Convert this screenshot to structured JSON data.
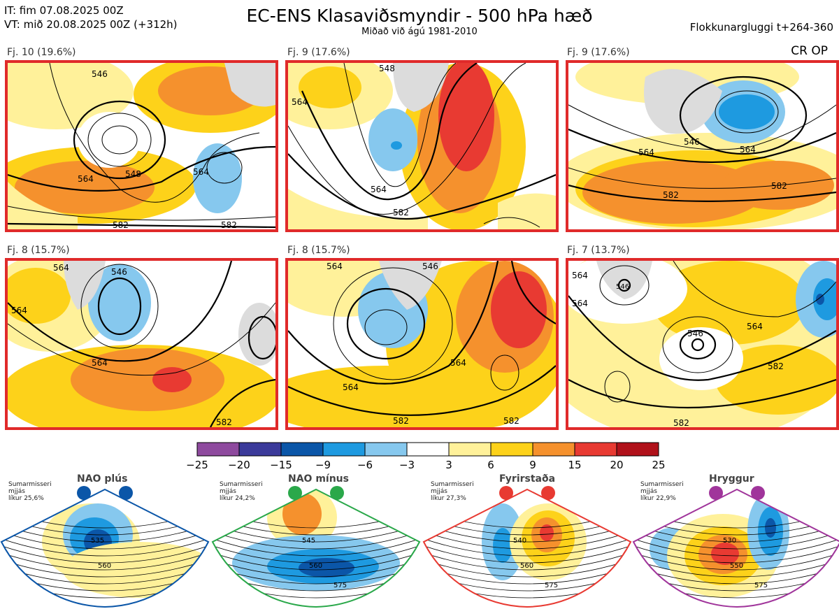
{
  "header": {
    "it_line": "IT: fim 07.08.2025 00Z",
    "vt_line": "VT: mið 20.08.2025 00Z  (+312h)",
    "title": "EC-ENS Klasaviðsmyndir - 500 hPa hæð",
    "subtitle": "Miðað við ágú 1981-2010",
    "window": "Flokkunargluggi t+264-360",
    "crop": "CR OP"
  },
  "panels": [
    {
      "label": "Fj. 10 (19.6%)",
      "contours": [
        "546",
        "548",
        "564",
        "564",
        "582",
        "582"
      ]
    },
    {
      "label": "Fj. 9 (17.6%)",
      "contours": [
        "548",
        "564",
        "564",
        "582"
      ]
    },
    {
      "label": "Fj. 9 (17.6%)",
      "contours": [
        "546",
        "564",
        "564",
        "582",
        "582"
      ]
    },
    {
      "label": "Fj. 8 (15.7%)",
      "contours": [
        "564",
        "546",
        "564",
        "564",
        "582"
      ]
    },
    {
      "label": "Fj. 8 (15.7%)",
      "contours": [
        "564",
        "546",
        "564",
        "582",
        "582",
        "564"
      ]
    },
    {
      "label": "Fj. 7 (13.7%)",
      "contours": [
        "564",
        "546",
        "564",
        "564",
        "582",
        "582",
        "546"
      ]
    }
  ],
  "chart_data": {
    "type": "heatmap",
    "title": "EC-ENS Klasaviðsmyndir - 500 hPa hæð",
    "colorbar": {
      "ticks": [
        "−25",
        "−20",
        "−15",
        "−9",
        "−6",
        "−3",
        "3",
        "6",
        "9",
        "15",
        "20",
        "25"
      ],
      "colors": [
        "#8e4a9e",
        "#3b3a9a",
        "#0b56a8",
        "#1e9ae0",
        "#86c8ee",
        "#ffffff",
        "#fff19a",
        "#fdd21a",
        "#f5912d",
        "#e83a32",
        "#b0111a"
      ]
    },
    "clusters": [
      {
        "cluster": 10,
        "percent": 19.6
      },
      {
        "cluster": 9,
        "percent": 17.6
      },
      {
        "cluster": 9,
        "percent": 17.6
      },
      {
        "cluster": 8,
        "percent": 15.7
      },
      {
        "cluster": 8,
        "percent": 15.7
      },
      {
        "cluster": 7,
        "percent": 13.7
      }
    ]
  },
  "regimes": [
    {
      "title": "NAO plús",
      "info": [
        "Sumarmisseri",
        "mjjás",
        "líkur 25,6%"
      ],
      "contours": [
        "535",
        "560"
      ],
      "color": "#0b56a8"
    },
    {
      "title": "NAO mínus",
      "info": [
        "Sumarmisseri",
        "mjjás",
        "líkur 24,2%"
      ],
      "contours": [
        "545",
        "560",
        "575"
      ],
      "color": "#2aa84a"
    },
    {
      "title": "Fyrirstaða",
      "info": [
        "Sumarmisseri",
        "mjjás",
        "líkur 27,3%"
      ],
      "contours": [
        "540",
        "560",
        "575"
      ],
      "color": "#e83a32"
    },
    {
      "title": "Hryggur",
      "info": [
        "Sumarmisseri",
        "mjjás",
        "líkur 22,9%"
      ],
      "contours": [
        "530",
        "550",
        "575"
      ],
      "color": "#a0359b"
    }
  ]
}
